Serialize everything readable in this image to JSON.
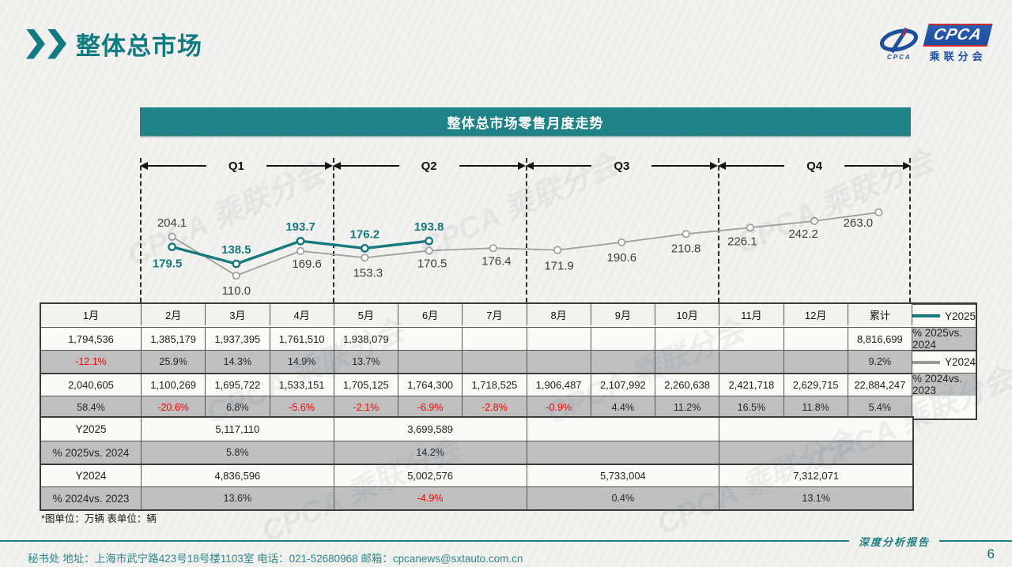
{
  "page": {
    "title": "整体总市场",
    "page_number": "6",
    "footnote": "*图单位：万辆    表单位：辆",
    "footer": {
      "report_label": "深度分析报告",
      "contact": "秘书处   地址：上海市武宁路423号18号楼1103室  电话：021-52680968   邮箱：cpcanews@sxtauto.com.cn"
    },
    "logo": {
      "brand": "CPCA",
      "sub": "乘联分会",
      "caption": "CPCA"
    }
  },
  "colors": {
    "teal": "#15797d",
    "gray_line": "#9d9d9d",
    "negative": "#ff0000",
    "bar": "#1e8286"
  },
  "watermark": {
    "text": "CPCA 乘联分会"
  },
  "chart_data": {
    "type": "line",
    "title": "整体总市场零售月度走势",
    "unit_note": "万辆",
    "categories": [
      "1月",
      "2月",
      "3月",
      "4月",
      "5月",
      "6月",
      "7月",
      "8月",
      "9月",
      "10月",
      "11月",
      "12月"
    ],
    "quarters": [
      "Q1",
      "Q2",
      "Q3",
      "Q4"
    ],
    "ylim": [
      100,
      275
    ],
    "grid": false,
    "legend_position": "table-left",
    "series": [
      {
        "name": "Y2025",
        "color": "#15797d",
        "values": [
          179.5,
          138.5,
          193.7,
          176.2,
          193.8
        ],
        "label_dx": [
          -6,
          0,
          0,
          0,
          0
        ],
        "label_dy": [
          26,
          -13,
          -13,
          -13,
          -13
        ]
      },
      {
        "name": "Y2024",
        "color": "#9d9d9d",
        "label_color": "#3d3d3d",
        "values": [
          204.1,
          110.0,
          169.6,
          153.3,
          170.5,
          176.4,
          171.9,
          190.6,
          210.8,
          226.1,
          242.2,
          263.0
        ],
        "label_dx": [
          0,
          0,
          8,
          4,
          4,
          4,
          2,
          0,
          0,
          -10,
          -14,
          -26
        ],
        "label_dy": [
          -13,
          24,
          21,
          24,
          21,
          21,
          25,
          24,
          23,
          22,
          21,
          18
        ]
      }
    ]
  },
  "table": {
    "columns": [
      "1月",
      "2月",
      "3月",
      "4月",
      "5月",
      "6月",
      "7月",
      "8月",
      "9月",
      "10月",
      "11月",
      "12月",
      "累计"
    ],
    "monthly_rows": [
      {
        "label": "Y2025",
        "swatch": "#15797d",
        "kind": "value",
        "cells": [
          "1,794,536",
          "1,385,179",
          "1,937,395",
          "1,761,510",
          "1,938,079",
          "",
          "",
          "",
          "",
          "",
          "",
          "",
          "8,816,699"
        ]
      },
      {
        "label": "% 2025vs. 2024",
        "kind": "pct",
        "cells": [
          "-12.1%",
          "25.9%",
          "14.3%",
          "14.9%",
          "13.7%",
          "",
          "",
          "",
          "",
          "",
          "",
          "",
          "9.2%"
        ]
      },
      {
        "label": "Y2024",
        "swatch": "#999999",
        "kind": "value",
        "thick": true,
        "cells": [
          "2,040,605",
          "1,100,269",
          "1,695,722",
          "1,533,151",
          "1,705,125",
          "1,764,300",
          "1,718,525",
          "1,906,487",
          "2,107,992",
          "2,260,638",
          "2,421,718",
          "2,629,715",
          "22,884,247"
        ]
      },
      {
        "label": "% 2024vs. 2023",
        "kind": "pct",
        "cells": [
          "58.4%",
          "-20.6%",
          "6.8%",
          "-5.6%",
          "-2.1%",
          "-6.9%",
          "-2.8%",
          "-0.9%",
          "4.4%",
          "11.2%",
          "16.5%",
          "11.8%",
          "5.4%"
        ]
      }
    ],
    "quarterly_rows": [
      {
        "label": "Y2025",
        "kind": "value",
        "cells": [
          "5,117,110",
          "3,699,589",
          "",
          ""
        ]
      },
      {
        "label": "% 2025vs. 2024",
        "kind": "pct",
        "cells": [
          "5.8%",
          "14.2%",
          "",
          ""
        ]
      },
      {
        "label": "Y2024",
        "kind": "value",
        "thick": true,
        "cells": [
          "4,836,596",
          "5,002,576",
          "5,733,004",
          "7,312,071"
        ]
      },
      {
        "label": "% 2024vs. 2023",
        "kind": "pct",
        "cells": [
          "13.6%",
          "-4.9%",
          "0.4%",
          "13.1%"
        ]
      }
    ]
  }
}
